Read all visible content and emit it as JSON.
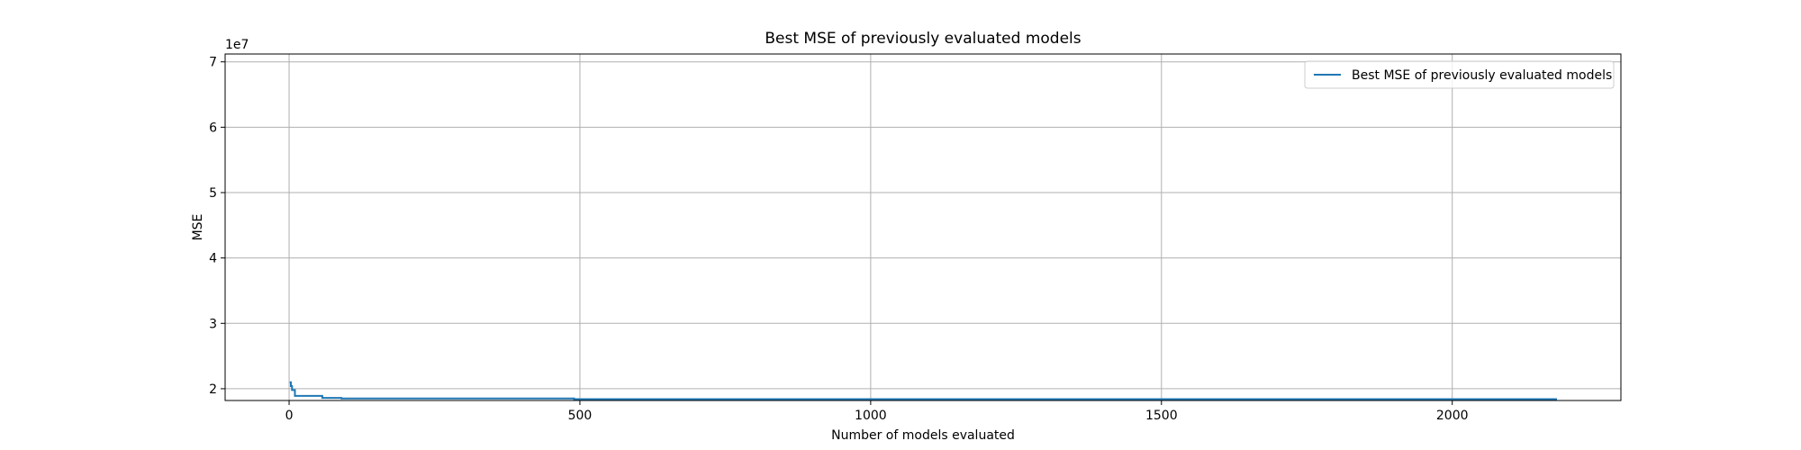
{
  "chart_data": {
    "type": "line",
    "title": "Best MSE of previously evaluated models",
    "xlabel": "Number of models evaluated",
    "ylabel": "MSE",
    "y_offset_label": "1e7",
    "xlim": [
      -110,
      2290
    ],
    "ylim": [
      18200000,
      71200000
    ],
    "x_ticks": [
      0,
      500,
      1000,
      1500,
      2000
    ],
    "x_tick_labels": [
      "0",
      "500",
      "1000",
      "1500",
      "2000"
    ],
    "y_ticks": [
      20000000,
      30000000,
      40000000,
      50000000,
      60000000,
      70000000
    ],
    "y_tick_labels": [
      "2",
      "3",
      "4",
      "5",
      "6",
      "7"
    ],
    "grid": true,
    "legend_position": "top-right",
    "colors": {
      "series": "#1f77b4",
      "grid": "#b0b0b0",
      "axis": "#000000"
    },
    "series": [
      {
        "name": "Best MSE of previously evaluated models",
        "x": [
          1,
          3,
          3,
          5,
          5,
          10,
          10,
          57,
          57,
          90,
          90,
          490,
          490,
          2180
        ],
        "y": [
          21000000,
          21000000,
          20400000,
          20400000,
          19800000,
          19800000,
          18900000,
          18900000,
          18600000,
          18600000,
          18500000,
          18500000,
          18400000,
          18400000
        ]
      }
    ]
  }
}
